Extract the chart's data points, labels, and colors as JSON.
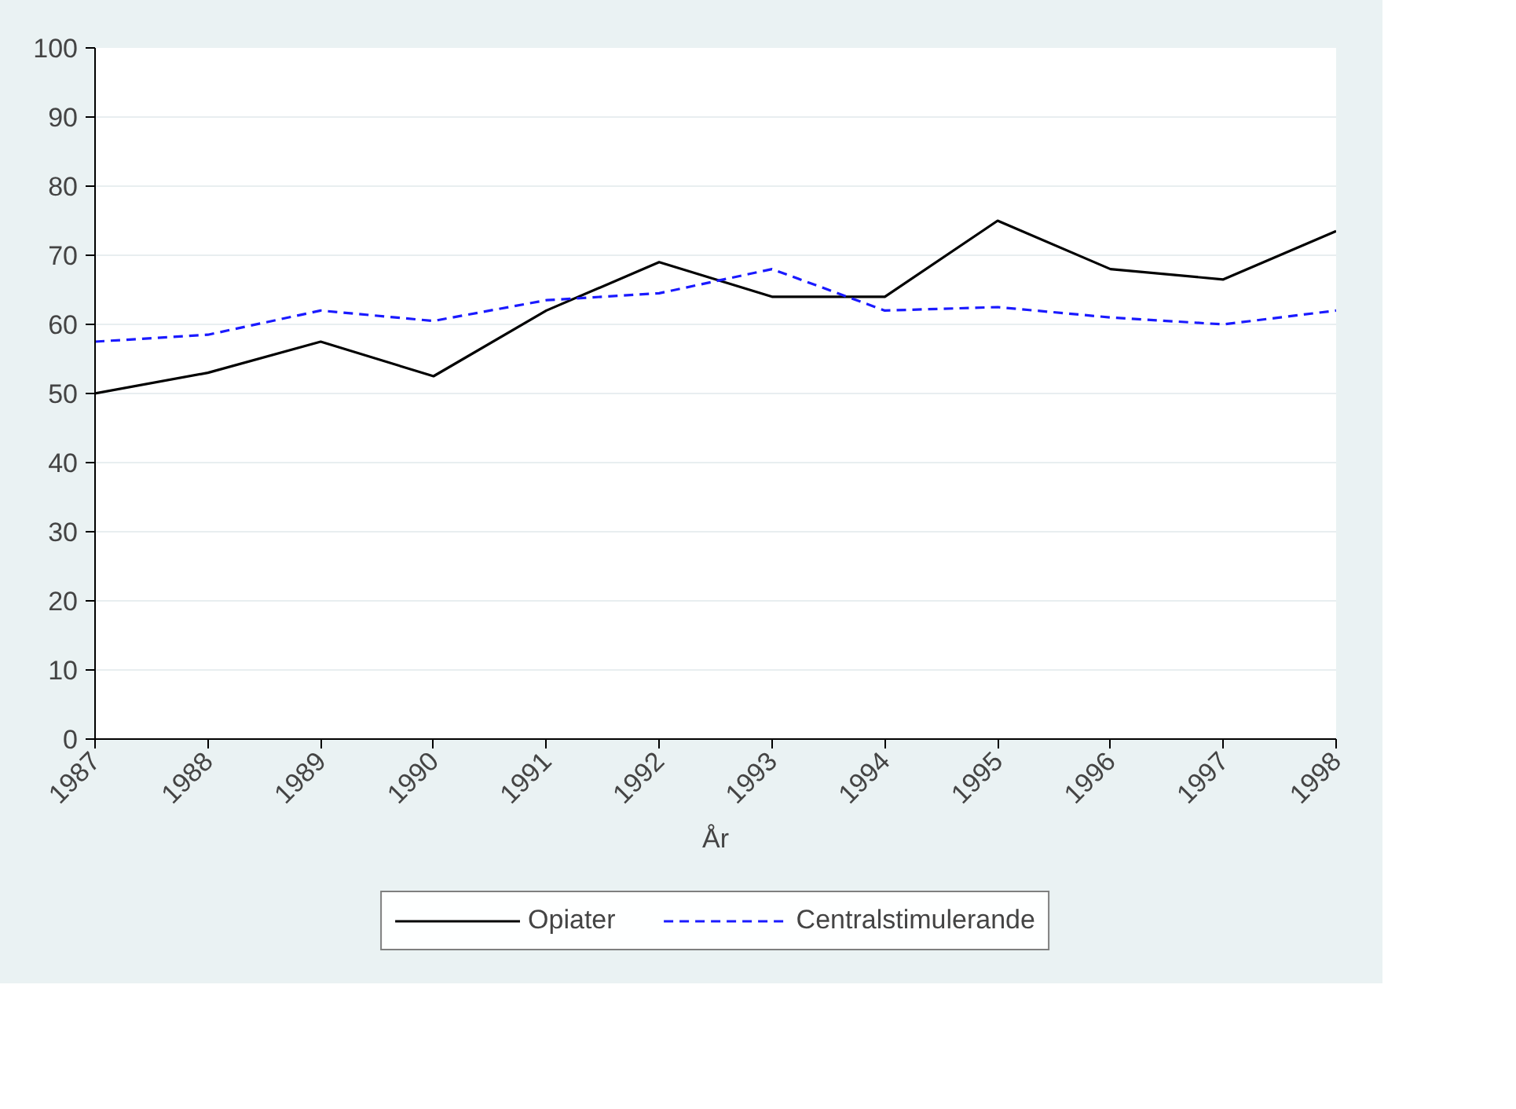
{
  "chart_data": {
    "type": "line",
    "xlabel": "År",
    "x": [
      1987,
      1988,
      1989,
      1990,
      1991,
      1992,
      1993,
      1994,
      1995,
      1996,
      1997,
      1998
    ],
    "xlim": [
      1987,
      1998
    ],
    "xticks": [
      1987,
      1988,
      1989,
      1990,
      1991,
      1992,
      1993,
      1994,
      1995,
      1996,
      1997,
      1998
    ],
    "ylim": [
      0,
      100
    ],
    "yticks": [
      0,
      10,
      20,
      30,
      40,
      50,
      60,
      70,
      80,
      90,
      100
    ],
    "grid": "y",
    "legend": "bottom",
    "marker": "none",
    "series": [
      {
        "name": "Opiater",
        "color": "#000000",
        "line_style": "solid",
        "values": [
          50,
          53,
          57.5,
          52.5,
          62,
          69,
          64,
          64,
          75,
          68,
          66.5,
          73.5
        ]
      },
      {
        "name": "Centralstimulerande",
        "color": "#1a1aff",
        "line_style": "dashed",
        "values": [
          57.5,
          58.5,
          62,
          60.5,
          63.5,
          64.5,
          68,
          62,
          62.5,
          61,
          60,
          62
        ]
      }
    ]
  }
}
